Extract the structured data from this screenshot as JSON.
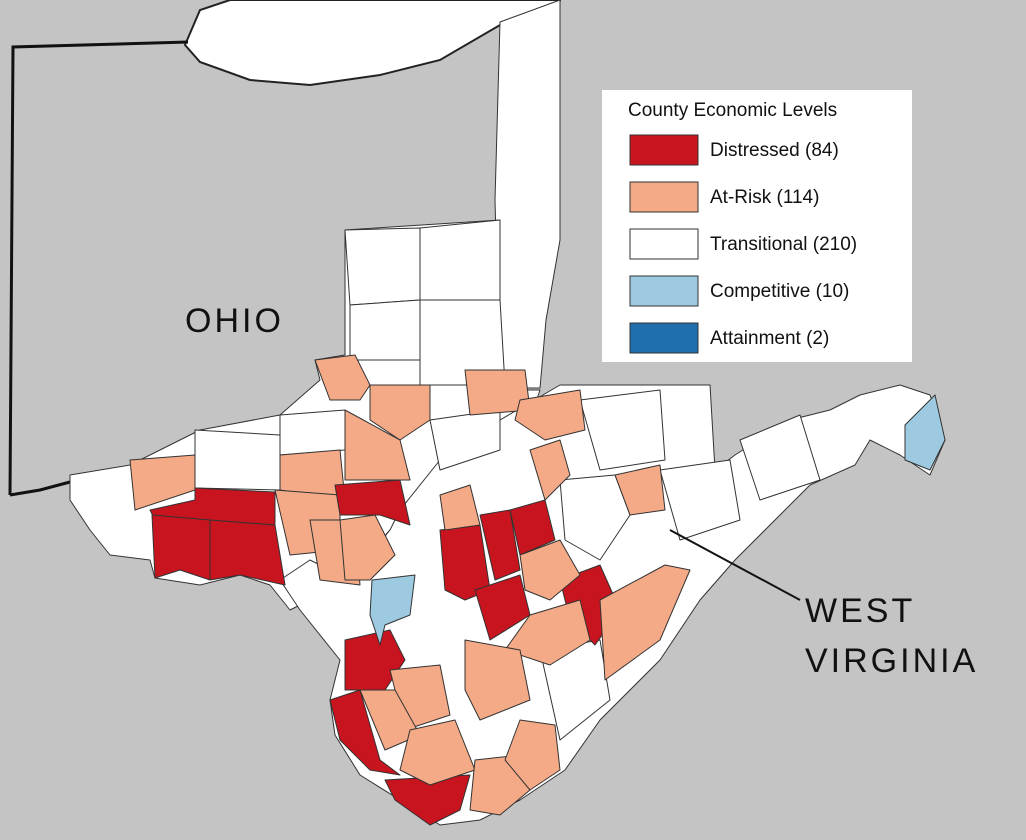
{
  "labels": {
    "ohio": "OHIO",
    "west_virginia": [
      "WEST",
      "VIRGINIA"
    ]
  },
  "legend": {
    "title": "County Economic Levels",
    "items": [
      {
        "label": "Distressed (84)",
        "color": "#c8141e"
      },
      {
        "label": "At-Risk (114)",
        "color": "#f4aa87"
      },
      {
        "label": "Transitional (210)",
        "color": "#ffffff"
      },
      {
        "label": "Competitive (10)",
        "color": "#9ecae1"
      },
      {
        "label": "Attainment (2)",
        "color": "#1f6fae"
      }
    ]
  }
}
